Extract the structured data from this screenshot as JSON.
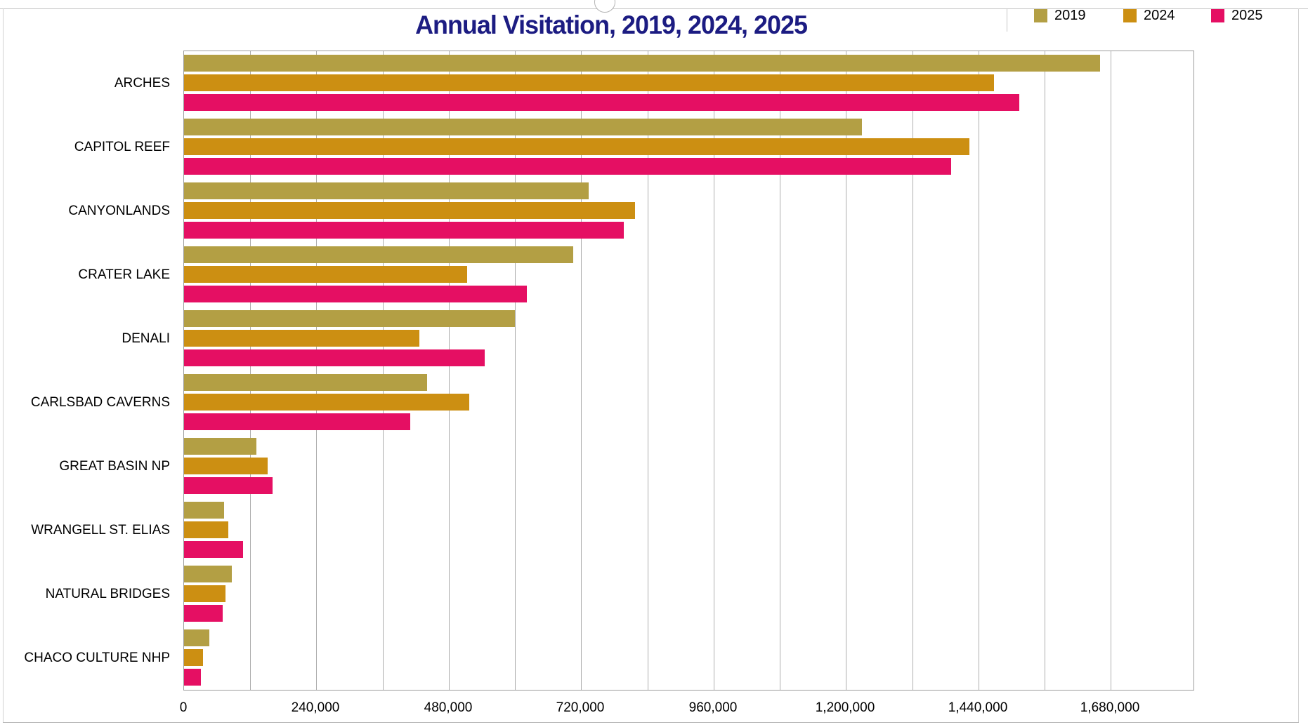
{
  "title": "Annual Visitation, 2019, 2024, 2025",
  "colors": {
    "title": "#1c1c82",
    "series_2019": "#b39f44",
    "series_2024": "#cc8f12",
    "series_2025": "#e50f63",
    "gridline": "#aeaeae",
    "axis_text": "#000000",
    "panel_border": "#c6c6c6"
  },
  "chart_data": {
    "type": "bar",
    "orientation": "horizontal",
    "title": "Annual Visitation, 2019, 2024, 2025",
    "categories": [
      "ARCHES",
      "CAPITOL REEF",
      "CANYONLANDS",
      "CRATER LAKE",
      "DENALI",
      "CARLSBAD CAVERNS",
      "GREAT BASIN NP",
      "WRANGELL ST. ELIAS",
      "NATURAL BRIDGES",
      "CHACO CULTURE NHP"
    ],
    "series": [
      {
        "name": "2019",
        "color": "#b39f44",
        "values": [
          1660000,
          1229000,
          734000,
          705000,
          600000,
          441000,
          131000,
          73000,
          87000,
          46000
        ]
      },
      {
        "name": "2024",
        "color": "#cc8f12",
        "values": [
          1468000,
          1424000,
          818000,
          513000,
          426000,
          517000,
          152000,
          80000,
          75000,
          35000
        ]
      },
      {
        "name": "2025",
        "color": "#e50f63",
        "values": [
          1514000,
          1391000,
          797000,
          622000,
          545000,
          410000,
          160000,
          107000,
          70000,
          30000
        ]
      }
    ],
    "xlim": [
      0,
      1830000
    ],
    "minor_tick_interval": 120000,
    "tick_label_values": [
      0,
      240000,
      480000,
      720000,
      960000,
      1200000,
      1440000,
      1680000
    ],
    "tick_labels": [
      "0",
      "240,000",
      "480,000",
      "720,000",
      "960,000",
      "1,200,000",
      "1,440,000",
      "1,680,000"
    ],
    "grid": true,
    "legend_position": "top-right"
  }
}
